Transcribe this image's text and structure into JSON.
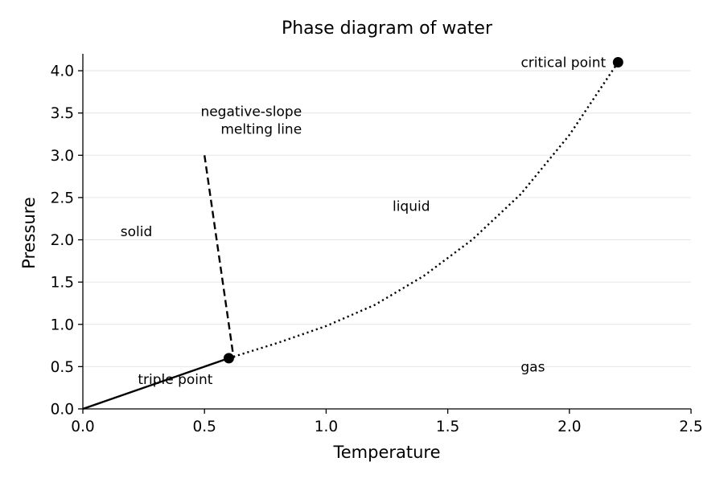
{
  "chart_data": {
    "type": "line",
    "title": "Phase diagram of water",
    "xlabel": "Temperature",
    "ylabel": "Pressure",
    "xlim": [
      0.0,
      2.5
    ],
    "ylim": [
      0.0,
      4.2
    ],
    "x_ticks": [
      "0.0",
      "0.5",
      "1.0",
      "1.5",
      "2.0",
      "2.5"
    ],
    "x_tick_values": [
      0.0,
      0.5,
      1.0,
      1.5,
      2.0,
      2.5
    ],
    "y_ticks": [
      "0.0",
      "0.5",
      "1.0",
      "1.5",
      "2.0",
      "2.5",
      "3.0",
      "3.5",
      "4.0"
    ],
    "y_tick_values": [
      0.0,
      0.5,
      1.0,
      1.5,
      2.0,
      2.5,
      3.0,
      3.5,
      4.0
    ],
    "grid": "horizontal",
    "series": [
      {
        "style": "solid",
        "color": "#000000",
        "x": [
          0.0,
          0.6
        ],
        "y": [
          0.0,
          0.6
        ]
      },
      {
        "style": "dashed",
        "color": "#000000",
        "x": [
          0.5,
          0.62
        ],
        "y": [
          3.0,
          0.6
        ]
      },
      {
        "style": "dotted",
        "color": "#000000",
        "x": [
          0.6,
          0.8,
          1.0,
          1.2,
          1.4,
          1.6,
          1.8,
          2.0,
          2.2
        ],
        "y": [
          0.6,
          0.78,
          0.98,
          1.23,
          1.57,
          2.0,
          2.54,
          3.24,
          4.1
        ]
      }
    ],
    "points": [
      {
        "label": "triple point",
        "x": 0.6,
        "y": 0.6,
        "color": "#000000"
      },
      {
        "label": "critical point",
        "x": 2.2,
        "y": 4.1,
        "color": "#000000"
      }
    ],
    "annotations": [
      {
        "text": "solid",
        "x": 0.22,
        "y": 2.1,
        "align": "center"
      },
      {
        "text": "liquid",
        "x": 1.35,
        "y": 2.4,
        "align": "center"
      },
      {
        "text": "gas",
        "x": 1.85,
        "y": 0.5,
        "align": "center"
      },
      {
        "text": "triple point",
        "x": 0.38,
        "y": 0.35,
        "align": "center"
      },
      {
        "text": "critical point",
        "x": 2.15,
        "y": 4.1,
        "align": "end"
      },
      {
        "text": "negative-slope",
        "x": 0.9,
        "y": 3.52,
        "align": "end"
      },
      {
        "text": "melting line",
        "x": 0.9,
        "y": 3.31,
        "align": "end"
      }
    ]
  }
}
